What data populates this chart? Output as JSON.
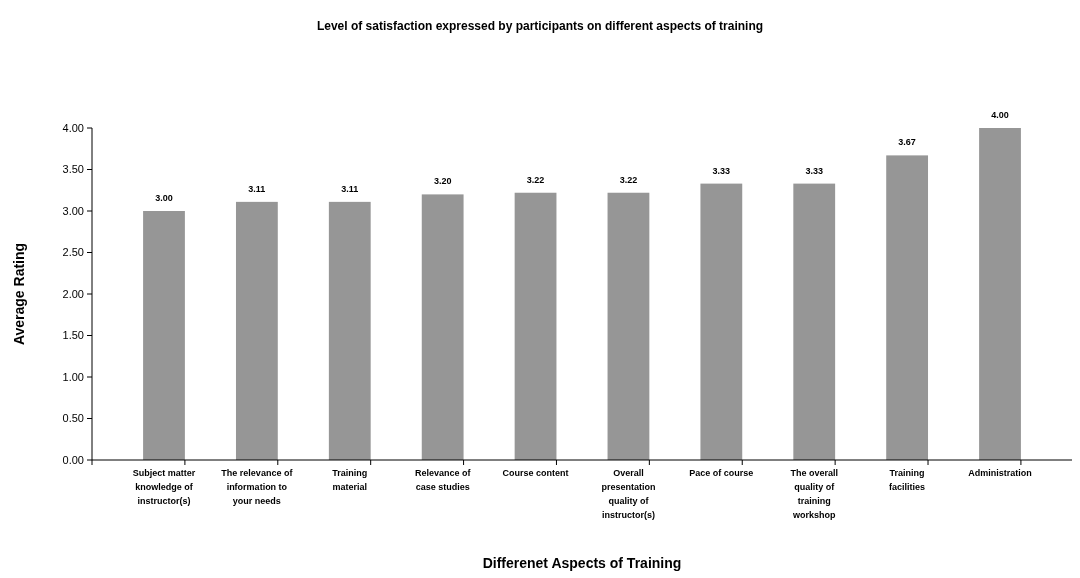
{
  "chart_data": {
    "type": "bar",
    "title": "Level of satisfaction expressed by participants on different aspects of training",
    "xlabel": "Differenet Aspects of Training",
    "ylabel": "Average Rating",
    "categories": [
      "Subject matter knowledge of instructor(s)",
      "The relevance of information to your needs",
      "Training material",
      "Relevance of case studies",
      "Course content",
      "Overall presentation quality of instructor(s)",
      "Pace of course",
      "The overall quality of training workshop",
      "Training facilities",
      "Administration"
    ],
    "values": [
      3.0,
      3.11,
      3.11,
      3.2,
      3.22,
      3.22,
      3.33,
      3.33,
      3.67,
      4.0
    ],
    "value_labels": [
      "3.00",
      "3.11",
      "3.11",
      "3.20",
      "3.22",
      "3.22",
      "3.33",
      "3.33",
      "3.67",
      "4.00"
    ],
    "color": "#969696",
    "ylim": [
      0,
      4
    ],
    "yticks": [
      {
        "value": 0,
        "label": "0.00"
      },
      {
        "value": 0.5,
        "label": "0.50"
      },
      {
        "value": 1,
        "label": "1.00"
      },
      {
        "value": 1.5,
        "label": "1.50"
      },
      {
        "value": 2,
        "label": "2.00"
      },
      {
        "value": 2.5,
        "label": "2.50"
      },
      {
        "value": 3,
        "label": "3.00"
      },
      {
        "value": 3.5,
        "label": "3.50"
      },
      {
        "value": 4,
        "label": "4.00"
      }
    ]
  }
}
